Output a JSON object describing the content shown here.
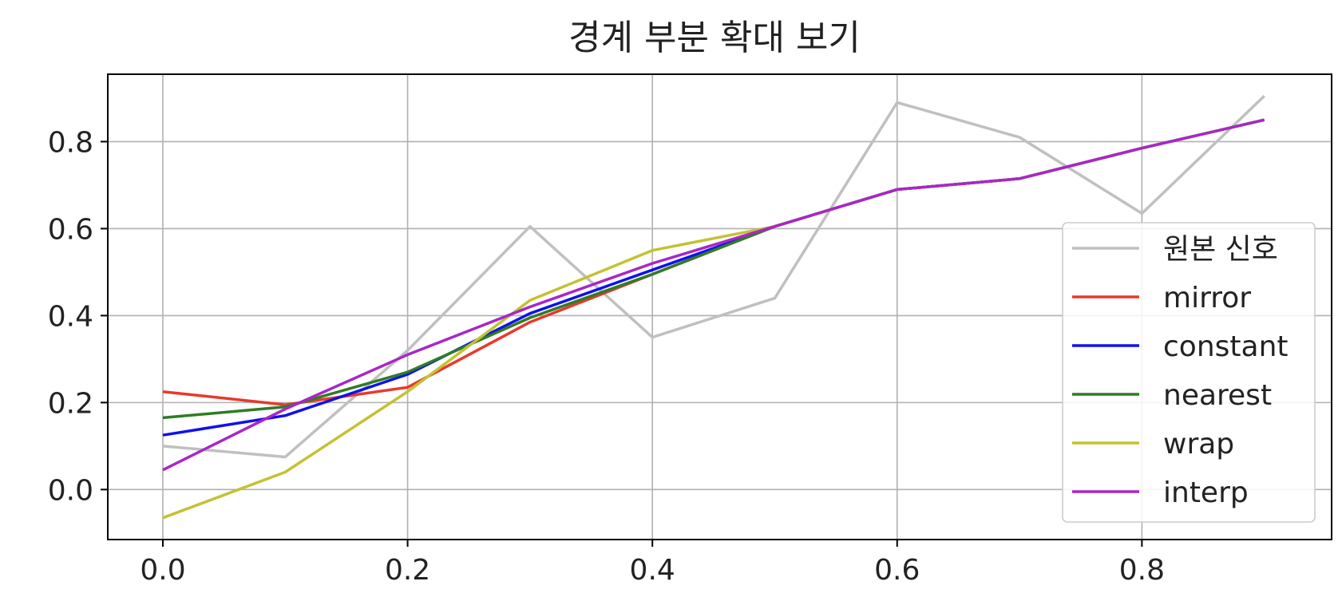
{
  "chart_data": {
    "type": "line",
    "title": "경계 부분 확대 보기",
    "xlabel": "",
    "ylabel": "",
    "xlim": [
      -0.045,
      0.955
    ],
    "ylim": [
      -0.115,
      0.955
    ],
    "x_ticks": [
      0.0,
      0.2,
      0.4,
      0.6,
      0.8
    ],
    "x_tick_labels": [
      "0.0",
      "0.2",
      "0.4",
      "0.6",
      "0.8"
    ],
    "y_ticks": [
      0.0,
      0.2,
      0.4,
      0.6,
      0.8
    ],
    "y_tick_labels": [
      "0.0",
      "0.2",
      "0.4",
      "0.6",
      "0.8"
    ],
    "grid": true,
    "legend_position": "center-right",
    "x": [
      0.0,
      0.1,
      0.2,
      0.3,
      0.4,
      0.5,
      0.6,
      0.7,
      0.8,
      0.9
    ],
    "series": [
      {
        "name": "원본 신호",
        "color": "#c0c0c0",
        "values": [
          0.1,
          0.075,
          0.32,
          0.605,
          0.35,
          0.44,
          0.89,
          0.81,
          0.635,
          0.905
        ]
      },
      {
        "name": "mirror",
        "color": "#e8392c",
        "values": [
          0.225,
          0.195,
          0.235,
          0.385,
          0.495,
          0.605,
          0.69,
          0.715,
          0.785,
          0.85
        ]
      },
      {
        "name": "constant",
        "color": "#1010f0",
        "values": [
          0.125,
          0.17,
          0.265,
          0.405,
          0.505,
          0.605,
          0.69,
          0.715,
          0.785,
          0.85
        ]
      },
      {
        "name": "nearest",
        "color": "#2e7d22",
        "values": [
          0.165,
          0.19,
          0.27,
          0.395,
          0.495,
          0.605,
          0.69,
          0.715,
          0.785,
          0.85
        ]
      },
      {
        "name": "wrap",
        "color": "#c3c232",
        "values": [
          -0.065,
          0.04,
          0.225,
          0.435,
          0.55,
          0.605,
          0.69,
          0.715,
          0.785,
          0.85
        ]
      },
      {
        "name": "interp",
        "color": "#a827c8",
        "values": [
          0.045,
          0.185,
          0.31,
          0.42,
          0.52,
          0.605,
          0.69,
          0.715,
          0.785,
          0.85
        ]
      }
    ]
  }
}
